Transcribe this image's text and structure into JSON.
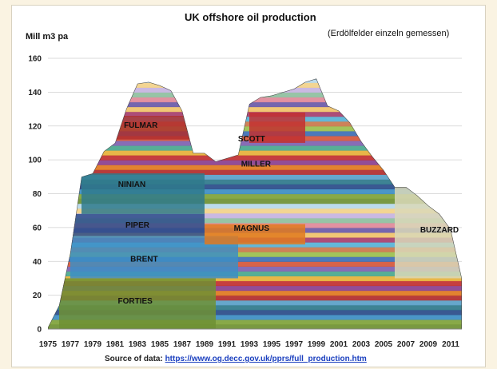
{
  "chart_data": {
    "type": "area",
    "title": "UK offshore oil production",
    "subtitle": "(Erdölfelder einzeln gemessen)",
    "ylabel": "Mill m3 pa",
    "xlabel": "",
    "ylim": [
      0,
      160
    ],
    "yticks": [
      "0",
      "20",
      "40",
      "60",
      "80",
      "100",
      "120",
      "140",
      "160"
    ],
    "xticks": [
      "1975",
      "1977",
      "1979",
      "1981",
      "1983",
      "1985",
      "1987",
      "1989",
      "1991",
      "1993",
      "1995",
      "1997",
      "1999",
      "2001",
      "2003",
      "2005",
      "2007",
      "2009",
      "2011"
    ],
    "years": [
      1975,
      1976,
      1977,
      1978,
      1979,
      1980,
      1981,
      1982,
      1983,
      1984,
      1985,
      1986,
      1987,
      1988,
      1989,
      1990,
      1991,
      1992,
      1993,
      1994,
      1995,
      1996,
      1997,
      1998,
      1999,
      2000,
      2001,
      2002,
      2003,
      2004,
      2005,
      2006,
      2007,
      2008,
      2009,
      2010,
      2011,
      2012
    ],
    "total": [
      1,
      14,
      45,
      90,
      92,
      105,
      110,
      130,
      145,
      146,
      144,
      141,
      129,
      104,
      104,
      99,
      101,
      103,
      133,
      137,
      138,
      140,
      142,
      146,
      148,
      132,
      129,
      122,
      111,
      102,
      94,
      84,
      84,
      79,
      73,
      68,
      59,
      30
    ],
    "field_labels": [
      {
        "name": "FORTIES",
        "year": 1982.8,
        "y": 15
      },
      {
        "name": "BRENT",
        "year": 1983.6,
        "y": 40
      },
      {
        "name": "PIPER",
        "year": 1983.0,
        "y": 60
      },
      {
        "name": "NINIAN",
        "year": 1982.5,
        "y": 84
      },
      {
        "name": "FULMAR",
        "year": 1983.3,
        "y": 119
      },
      {
        "name": "MAGNUS",
        "year": 1993.2,
        "y": 58
      },
      {
        "name": "MILLER",
        "year": 1993.6,
        "y": 96
      },
      {
        "name": "SCOTT",
        "year": 1993.2,
        "y": 111
      },
      {
        "name": "BUZZARD",
        "year": 2010.0,
        "y": 57
      }
    ]
  },
  "source": {
    "prefix": "Source of data: ",
    "link": "https://www.og.decc.gov.uk/pprs/full_production.htm"
  },
  "colors": {
    "forties": "#6f9134",
    "brent": "#3d8ec4",
    "piper": "#2b4c8a",
    "ninian": "#2f7a8c",
    "fulmar": "#b22d2d",
    "magnus": "#e07a20",
    "scott": "#c23030",
    "buzzard": "#d9d8b8"
  }
}
